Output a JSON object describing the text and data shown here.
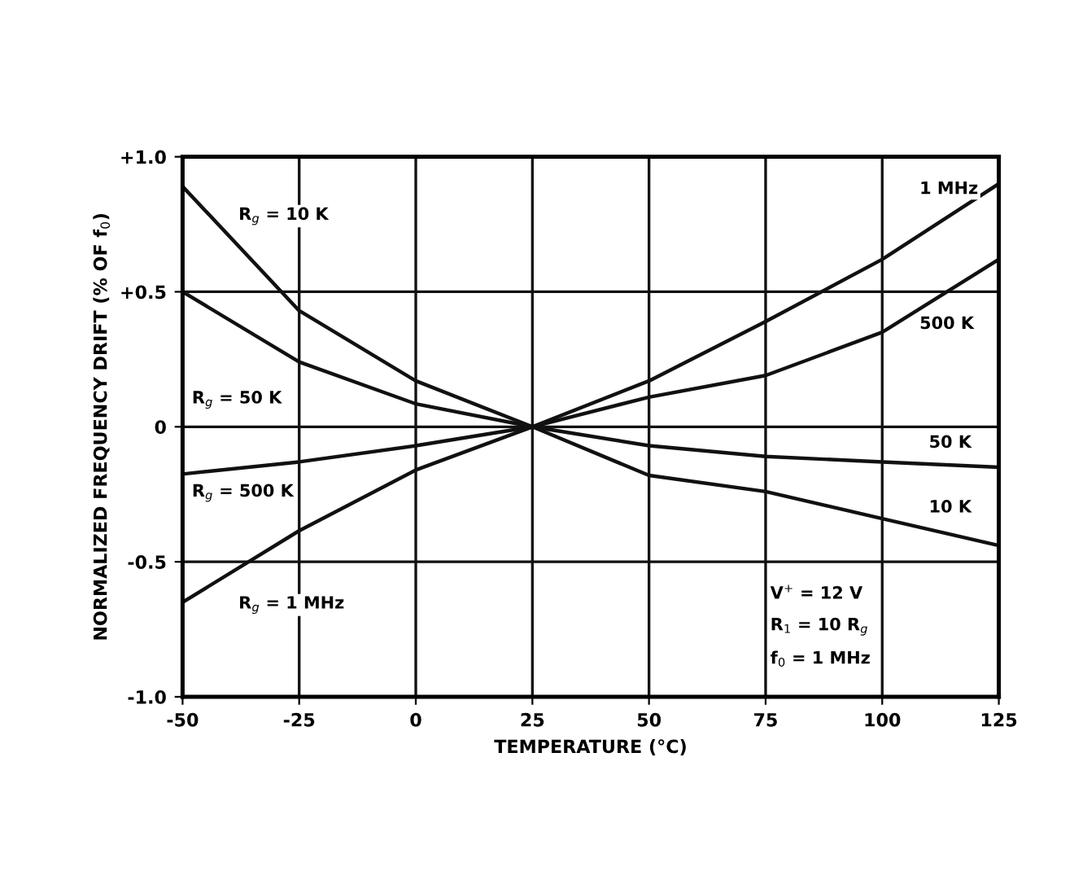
{
  "chart_data": {
    "type": "line",
    "xlabel": "TEMPERATURE (°C)",
    "ylabel": "NORMALIZED FREQUENCY DRIFT (% OF f$_{0}$)",
    "x": [
      -50,
      -25,
      0,
      25,
      50,
      75,
      100,
      125
    ],
    "series": [
      {
        "name": "R$_{g}$ = 10 K",
        "color": "#111111",
        "values": [
          0.89,
          0.43,
          0.17,
          0,
          -0.18,
          -0.24,
          -0.34,
          -0.44
        ]
      },
      {
        "name": "R$_{g}$ = 50 K",
        "color": "#111111",
        "values": [
          0.5,
          0.24,
          0.085,
          0,
          -0.07,
          -0.11,
          -0.13,
          -0.15
        ]
      },
      {
        "name": "R$_{g}$ = 500 K",
        "color": "#111111",
        "values": [
          -0.175,
          -0.13,
          -0.07,
          0,
          0.11,
          0.19,
          0.35,
          0.62
        ]
      },
      {
        "name": "R$_{g}$ = 1 MHz",
        "color": "#111111",
        "values": [
          -0.65,
          -0.385,
          -0.16,
          0,
          0.17,
          0.39,
          0.62,
          0.9
        ]
      }
    ],
    "xlim": [
      -50,
      125
    ],
    "ylim": [
      -1.0,
      1.0
    ],
    "xticks": [
      -50,
      -25,
      0,
      25,
      50,
      75,
      100,
      125
    ],
    "yticks": [
      {
        "value": 1.0,
        "label": "+1.0"
      },
      {
        "value": 0.5,
        "label": "+0.5"
      },
      0,
      {
        "value": -0.5,
        "label": "-0.5"
      },
      {
        "value": -1.0,
        "label": "-1.0"
      }
    ],
    "grid": true,
    "marker": "none",
    "line_style": "solid",
    "annotations": [
      "10 K",
      "50 K",
      "500 K",
      "1 MHz",
      "V$^{+}$ = 12 V",
      "R$_{1}$ = 10 R$_{g}$",
      "f$_{0}$ = 1 MHz"
    ]
  }
}
